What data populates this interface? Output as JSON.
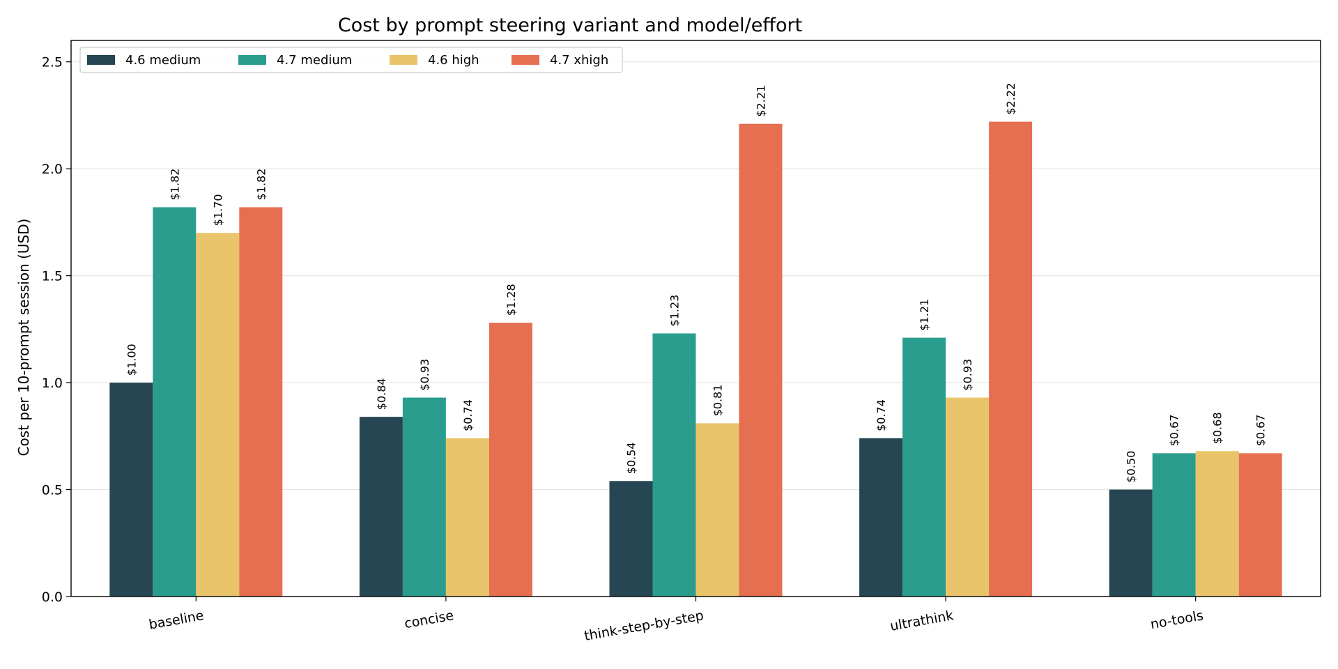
{
  "chart_data": {
    "type": "bar",
    "title": "Cost by prompt steering variant and model/effort",
    "xlabel": "",
    "ylabel": "Cost per 10-prompt session (USD)",
    "ylim": [
      0,
      2.6
    ],
    "yticks": [
      "0.0",
      "0.5",
      "1.0",
      "1.5",
      "2.0",
      "2.5"
    ],
    "ytick_values": [
      0,
      0.5,
      1.0,
      1.5,
      2.0,
      2.5
    ],
    "grid": "horizontal",
    "legend_position": "top-left",
    "categories": [
      "baseline",
      "concise",
      "think-step-by-step",
      "ultrathink",
      "no-tools"
    ],
    "series": [
      {
        "name": "4.6 medium",
        "color": "#264653",
        "values": [
          1.0,
          0.84,
          0.54,
          0.74,
          0.5
        ],
        "labels": [
          "$1.00",
          "$0.84",
          "$0.54",
          "$0.74",
          "$0.50"
        ]
      },
      {
        "name": "4.7 medium",
        "color": "#2a9d8f",
        "values": [
          1.82,
          0.93,
          1.23,
          1.21,
          0.67
        ],
        "labels": [
          "$1.82",
          "$0.93",
          "$1.23",
          "$1.21",
          "$0.67"
        ]
      },
      {
        "name": "4.6 high",
        "color": "#e9c46a",
        "values": [
          1.7,
          0.74,
          0.81,
          0.93,
          0.68
        ],
        "labels": [
          "$1.70",
          "$0.74",
          "$0.81",
          "$0.93",
          "$0.68"
        ]
      },
      {
        "name": "4.7 xhigh",
        "color": "#e76f51",
        "values": [
          1.82,
          1.28,
          2.21,
          2.22,
          0.67
        ],
        "labels": [
          "$1.82",
          "$1.28",
          "$2.21",
          "$2.22",
          "$0.67"
        ]
      }
    ]
  }
}
